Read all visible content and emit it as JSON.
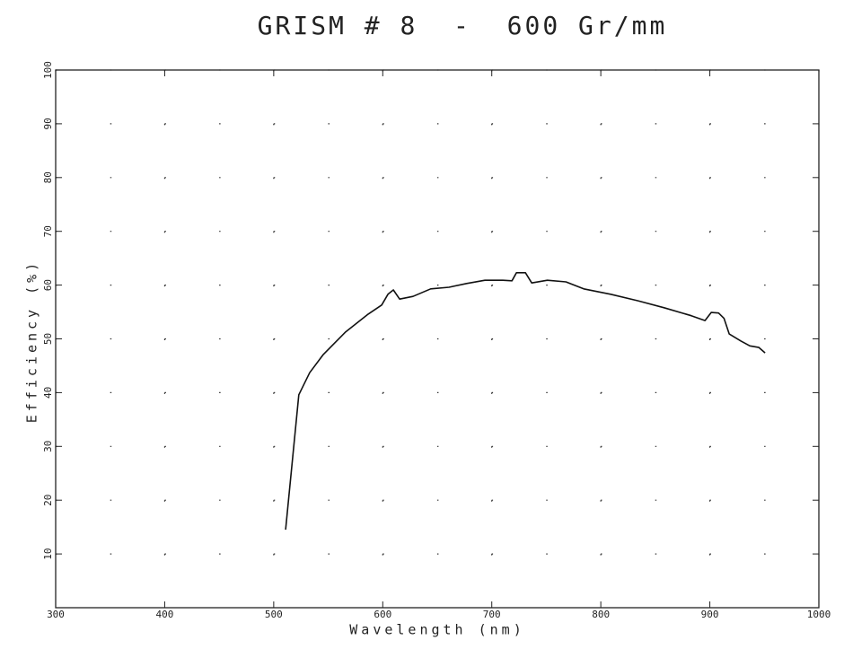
{
  "chart_data": {
    "type": "line",
    "title": "GRISM # 8  -  600 Gr/mm",
    "x_label": "Wavelength (nm)",
    "y_label": "Efficiency (%)",
    "x": [
      510.9,
      523,
      533,
      545.5,
      566,
      586.7,
      599,
      604.8,
      609.7,
      615.5,
      627.8,
      644,
      660.8,
      677,
      693.7,
      710,
      718.5,
      722.6,
      730.9,
      736.6,
      751,
      768,
      784.3,
      809,
      833.8,
      858,
      883,
      895.6,
      901.3,
      908,
      913,
      917.8,
      928.5,
      936.7,
      945,
      950.7
    ],
    "values": [
      14.5,
      39.6,
      43.7,
      47.1,
      51.3,
      54.6,
      56.3,
      58.3,
      59.1,
      57.4,
      57.9,
      59.3,
      59.6,
      60.3,
      60.9,
      60.9,
      60.8,
      62.3,
      62.3,
      60.4,
      60.9,
      60.6,
      59.3,
      58.3,
      57.1,
      55.8,
      54.3,
      53.4,
      54.9,
      54.8,
      53.8,
      50.9,
      49.6,
      48.7,
      48.4,
      47.4
    ],
    "color": "#111111",
    "xlim": [
      300,
      1000
    ],
    "xticks": [
      300,
      400,
      500,
      600,
      700,
      800,
      900,
      1000
    ],
    "ylim": [
      0,
      100
    ],
    "yticks": [
      10,
      20,
      30,
      40,
      50,
      60,
      70,
      80,
      90,
      100
    ],
    "grid": true
  }
}
